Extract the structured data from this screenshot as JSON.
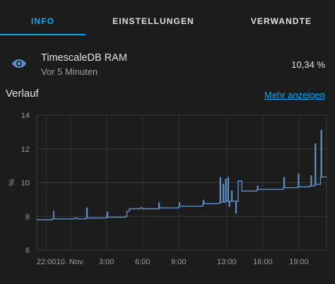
{
  "tabs": [
    {
      "label": "INFO",
      "active": true
    },
    {
      "label": "EINSTELLUNGEN",
      "active": false
    },
    {
      "label": "VERWANDTE",
      "active": false
    }
  ],
  "entity": {
    "icon": "eye-icon",
    "name": "TimescaleDB RAM",
    "last_changed": "Vor 5 Minuten",
    "value": "10,34 %"
  },
  "history": {
    "title": "Verlauf",
    "more_link": "Mehr anzeigen"
  },
  "colors": {
    "accent": "#03a9f4",
    "line": "#5b8fc6",
    "background": "#1c1c1c"
  },
  "chart_data": {
    "type": "line",
    "ylabel": "%",
    "ylim": [
      6,
      14
    ],
    "yticks": [
      6,
      8,
      10,
      12,
      14
    ],
    "xticks": [
      {
        "label": "22:00",
        "t": 0
      },
      {
        "label": "10. Nov.",
        "t": 2
      },
      {
        "label": "3:00",
        "t": 5
      },
      {
        "label": "6:00",
        "t": 8
      },
      {
        "label": "9:00",
        "t": 11
      },
      {
        "label": "13:00",
        "t": 15
      },
      {
        "label": "16:00",
        "t": 18
      },
      {
        "label": "19:00",
        "t": 21
      }
    ],
    "xlim": [
      -0.8,
      23.3
    ],
    "grid": true,
    "series": [
      {
        "points": [
          [
            -0.8,
            7.8
          ],
          [
            0.5,
            7.85
          ],
          [
            0.6,
            8.3
          ],
          [
            0.62,
            7.85
          ],
          [
            2.4,
            7.9
          ],
          [
            2.6,
            7.85
          ],
          [
            3.3,
            7.9
          ],
          [
            3.35,
            8.5
          ],
          [
            3.4,
            7.9
          ],
          [
            5.0,
            7.95
          ],
          [
            5.05,
            8.25
          ],
          [
            5.1,
            7.95
          ],
          [
            6.6,
            8.0
          ],
          [
            6.7,
            8.3
          ],
          [
            6.8,
            8.3
          ],
          [
            6.9,
            8.45
          ],
          [
            7.5,
            8.45
          ],
          [
            7.8,
            8.5
          ],
          [
            8.0,
            8.45
          ],
          [
            9.3,
            8.45
          ],
          [
            9.35,
            8.8
          ],
          [
            9.4,
            8.5
          ],
          [
            11.0,
            8.55
          ],
          [
            11.05,
            8.8
          ],
          [
            11.1,
            8.6
          ],
          [
            13.0,
            8.7
          ],
          [
            13.05,
            8.95
          ],
          [
            13.1,
            8.75
          ],
          [
            14.4,
            8.8
          ],
          [
            14.45,
            10.3
          ],
          [
            14.5,
            8.85
          ],
          [
            14.7,
            9.9
          ],
          [
            14.75,
            8.85
          ],
          [
            14.9,
            10.2
          ],
          [
            14.95,
            8.9
          ],
          [
            15.1,
            10.3
          ],
          [
            15.15,
            8.9
          ],
          [
            15.2,
            8.6
          ],
          [
            15.25,
            8.9
          ],
          [
            15.4,
            9.5
          ],
          [
            15.45,
            8.9
          ],
          [
            15.7,
            8.9
          ],
          [
            15.75,
            8.2
          ],
          [
            15.8,
            8.9
          ],
          [
            15.9,
            8.9
          ],
          [
            15.95,
            10.1
          ],
          [
            16.2,
            10.1
          ],
          [
            16.25,
            9.5
          ],
          [
            17.5,
            9.55
          ],
          [
            17.55,
            9.8
          ],
          [
            17.6,
            9.6
          ],
          [
            19.7,
            9.7
          ],
          [
            19.75,
            10.3
          ],
          [
            19.8,
            9.7
          ],
          [
            20.9,
            9.75
          ],
          [
            20.95,
            10.5
          ],
          [
            21.0,
            9.75
          ],
          [
            21.9,
            9.8
          ],
          [
            22.0,
            10.4
          ],
          [
            22.05,
            9.8
          ],
          [
            22.3,
            9.85
          ],
          [
            22.35,
            12.3
          ],
          [
            22.4,
            9.9
          ],
          [
            22.8,
            10.3
          ],
          [
            22.85,
            13.1
          ],
          [
            22.9,
            10.34
          ],
          [
            23.3,
            10.34
          ]
        ]
      }
    ]
  }
}
